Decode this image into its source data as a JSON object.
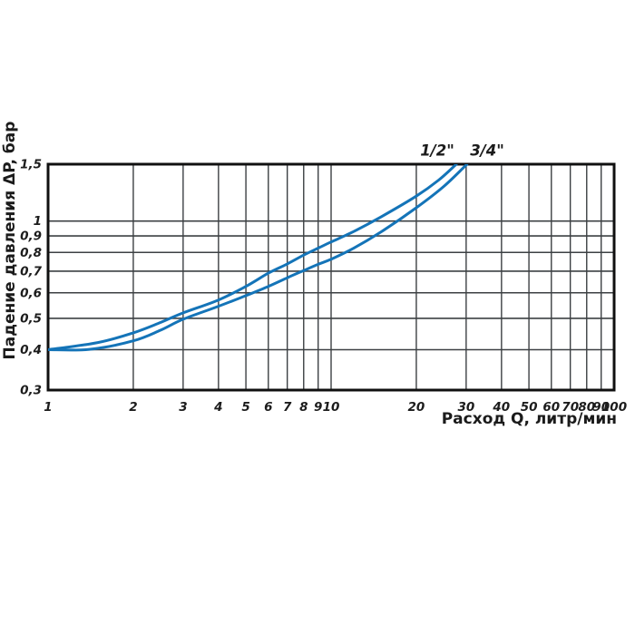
{
  "chart_data": {
    "type": "line",
    "title": "",
    "x_axis": {
      "label": "Расход Q, литр/мин",
      "scale": "log",
      "range": [
        1,
        100
      ],
      "ticks": [
        1,
        2,
        3,
        4,
        5,
        6,
        7,
        8,
        9,
        10,
        20,
        30,
        40,
        50,
        60,
        70,
        80,
        90,
        100
      ],
      "tick_labels": [
        "1",
        "2",
        "3",
        "4",
        "5",
        "6",
        "7",
        "8",
        "9",
        "10",
        "20",
        "30",
        "40",
        "50",
        "60",
        "70",
        "80",
        "90",
        "100"
      ]
    },
    "y_axis": {
      "label": "Падение давления ΔP, бар",
      "scale": "log",
      "range": [
        0.3,
        1.5
      ],
      "ticks": [
        0.3,
        0.4,
        0.5,
        0.6,
        0.7,
        0.8,
        0.9,
        1,
        1.5
      ],
      "tick_labels": [
        "0,3",
        "0,4",
        "0,5",
        "0,6",
        "0,7",
        "0,8",
        "0,9",
        "1",
        "1,5"
      ]
    },
    "grid": "on",
    "legend_position": "labels-above-plot",
    "series": [
      {
        "name": "1/2\"",
        "color": "#1474b8",
        "points": [
          [
            1,
            0.4
          ],
          [
            1.5,
            0.421
          ],
          [
            2,
            0.451
          ],
          [
            2.5,
            0.486
          ],
          [
            3,
            0.52
          ],
          [
            4,
            0.57
          ],
          [
            5,
            0.628
          ],
          [
            6,
            0.69
          ],
          [
            7,
            0.737
          ],
          [
            8,
            0.785
          ],
          [
            9,
            0.825
          ],
          [
            10,
            0.862
          ],
          [
            12,
            0.928
          ],
          [
            15,
            1.03
          ],
          [
            20,
            1.195
          ],
          [
            24,
            1.34
          ],
          [
            27.7,
            1.5
          ]
        ]
      },
      {
        "name": "3/4\"",
        "color": "#1474b8",
        "points": [
          [
            1,
            0.4
          ],
          [
            1.4,
            0.401
          ],
          [
            2,
            0.426
          ],
          [
            2.5,
            0.46
          ],
          [
            3,
            0.497
          ],
          [
            4,
            0.545
          ],
          [
            5,
            0.588
          ],
          [
            6,
            0.628
          ],
          [
            7,
            0.668
          ],
          [
            8,
            0.703
          ],
          [
            9,
            0.735
          ],
          [
            10,
            0.762
          ],
          [
            12,
            0.824
          ],
          [
            15,
            0.925
          ],
          [
            20,
            1.1
          ],
          [
            25,
            1.28
          ],
          [
            30.2,
            1.5
          ]
        ]
      }
    ]
  },
  "colors": {
    "curve": "#1474b8",
    "grid": "#3c4043",
    "border": "#101010",
    "text": "#1b1b1b",
    "background": "#ffffff"
  }
}
